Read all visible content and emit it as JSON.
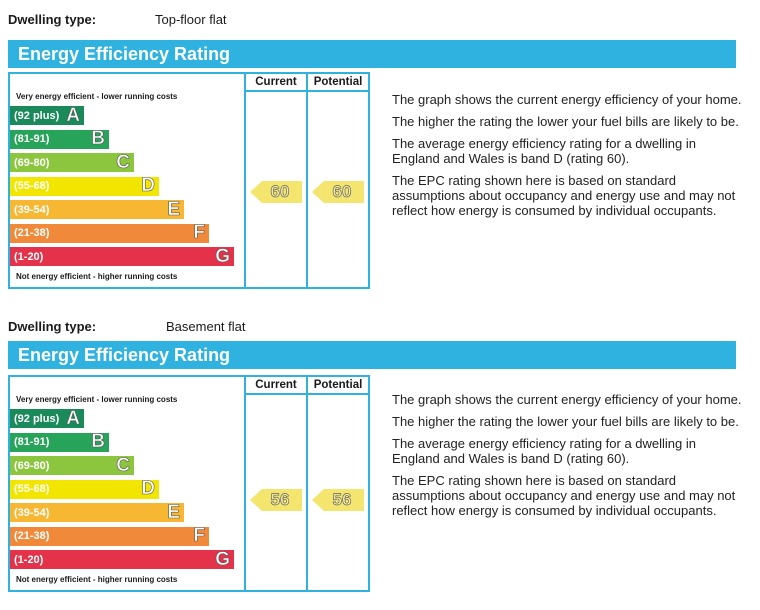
{
  "panels": [
    {
      "dwelling_label": "Dwelling type:",
      "dwelling_type": "Top-floor flat",
      "title": "Energy Efficiency Rating",
      "col_current": "Current",
      "col_potential": "Potential",
      "caption_top": "Very energy efficient - lower running costs",
      "caption_bottom": "Not energy efficient - higher running costs",
      "current": "60",
      "potential": "60",
      "description": [
        "The graph shows the current energy efficiency of your home.",
        "The higher the rating the lower your fuel bills are likely to be.",
        "The average energy efficiency rating for a dwelling in England and Wales is band D (rating 60).",
        "The EPC rating shown here is based on standard assumptions about occupancy and energy use and may not reflect how energy is consumed by individual occupants."
      ]
    },
    {
      "dwelling_label": "Dwelling type:",
      "dwelling_type": "Basement flat",
      "title": "Energy Efficiency Rating",
      "col_current": "Current",
      "col_potential": "Potential",
      "caption_top": "Very energy efficient - lower running costs",
      "caption_bottom": "Not energy efficient - higher running costs",
      "current": "56",
      "potential": "56",
      "description": [
        "The graph shows the current energy efficiency of your home.",
        "The higher the rating the lower your fuel bills are likely to be.",
        "The average energy efficiency rating for a dwelling in England and Wales is band D (rating 60).",
        "The EPC rating shown here is based on standard assumptions about occupancy and energy use and may not reflect how energy is consumed by individual occupants."
      ]
    }
  ],
  "bands": [
    {
      "range": "(92 plus)",
      "letter": "A",
      "color": "#1a8a5a"
    },
    {
      "range": "(81-91)",
      "letter": "B",
      "color": "#27a35a"
    },
    {
      "range": "(69-80)",
      "letter": "C",
      "color": "#8cc63f"
    },
    {
      "range": "(55-68)",
      "letter": "D",
      "color": "#f2e600"
    },
    {
      "range": "(39-54)",
      "letter": "E",
      "color": "#f7b733"
    },
    {
      "range": "(21-38)",
      "letter": "F",
      "color": "#f08a3a"
    },
    {
      "range": "(1-20)",
      "letter": "G",
      "color": "#e3324a"
    }
  ]
}
